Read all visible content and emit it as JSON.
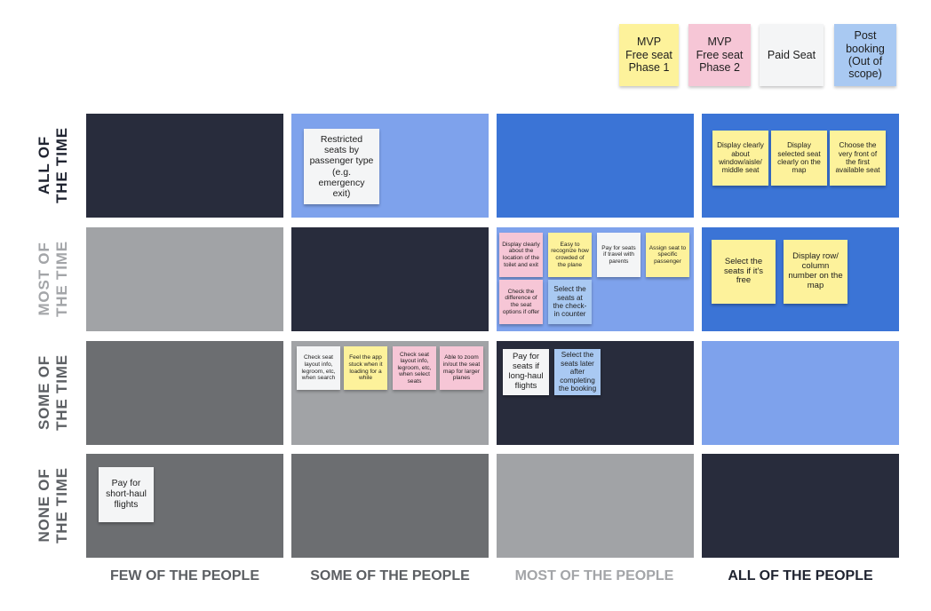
{
  "legend": [
    {
      "label": "MVP\nFree seat\nPhase 1",
      "color": "yellow"
    },
    {
      "label": "MVP\nFree seat\nPhase 2",
      "color": "pink"
    },
    {
      "label": "Paid Seat",
      "color": "white"
    },
    {
      "label": "Post\nbooking\n(Out of\nscope)",
      "color": "blue"
    }
  ],
  "rows": [
    {
      "line1": "ALL OF",
      "line2": "THE TIME",
      "color": "#1f2330"
    },
    {
      "line1": "MOST OF",
      "line2": "THE TIME",
      "color": "#a3a5a8"
    },
    {
      "line1": "SOME OF",
      "line2": "THE TIME",
      "color": "#5c5f63"
    },
    {
      "line1": "NONE OF",
      "line2": "THE TIME",
      "color": "#5c5f63"
    }
  ],
  "columns": [
    {
      "label": "FEW OF THE PEOPLE",
      "color": "#5b5e62"
    },
    {
      "label": "SOME OF THE PEOPLE",
      "color": "#5b5e62"
    },
    {
      "label": "MOST OF THE PEOPLE",
      "color": "#a3a5a8"
    },
    {
      "label": "ALL OF THE PEOPLE",
      "color": "#1f2330"
    }
  ],
  "cell_colors": [
    [
      "#282c3c",
      "#7ea2ec",
      "#3b74d6",
      "#3b74d6"
    ],
    [
      "#a1a3a6",
      "#282c3c",
      "#7ea2ec",
      "#3b74d6"
    ],
    [
      "#6c6e71",
      "#a1a3a6",
      "#282c3c",
      "#7ea2ec"
    ],
    [
      "#6c6e71",
      "#6c6e71",
      "#a1a3a6",
      "#282c3c"
    ]
  ],
  "notes": {
    "restricted": "Restricted\nseats by\npassenger type\n(e.g.\nemergency\nexit)",
    "window_aisle": "Display clearly\nabout\nwindow/aisle/\nmiddle seat",
    "selected_seat": "Display\nselected seat\nclearly on the\nmap",
    "front_seat": "Choose the\nvery front of\nthe first\navailable seat",
    "toilet_exit": "Display clearly\nabout the\nlocation of the\ntoilet and exit",
    "crowded": "Easy to\nrecognize how\ncrowded of\nthe plane",
    "parents": "Pay for seats\nif travel with\nparents",
    "assign": "Assign seat to\nspecific\npassenger",
    "difference": "Check the\ndifference of\nthe seat\noptions if offer",
    "checkin": "Select the\nseats at\nthe check-\nin counter",
    "free_select": "Select the\nseats if it's\nfree",
    "row_column": "Display row/\ncolumn\nnumber on the\nmap",
    "layout_search": "Check seat\nlayout info,\nlegroom, etc,\nwhen search",
    "stuck": "Feel the app\nstuck when it\nloading for a\nwhile",
    "layout_select": "Check seat\nlayout info,\nlegroom, etc,\nwhen select\nseats",
    "zoom": "Able to zoom\nin/out the seat\nmap for larger\nplanes",
    "long_haul": "Pay for\nseats if\nlong-haul\nflights",
    "later": "Select the\nseats later\nafter\ncompleting\nthe booking",
    "short_haul": "Pay for\nshort-haul\nflights"
  }
}
